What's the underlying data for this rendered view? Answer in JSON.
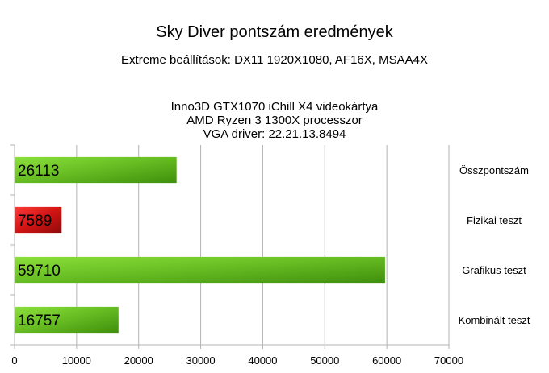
{
  "chart_data": {
    "type": "bar",
    "orientation": "horizontal",
    "title": "Sky Diver pontszám eredmények",
    "subtitle_lines": [
      "Extreme beállítások: DX11 1920X1080, AF16X, MSAA4X",
      "",
      "Inno3D GTX1070 iChill X4 videokártya",
      "AMD Ryzen 3 1300X processzor",
      "VGA driver: 22.21.13.8494"
    ],
    "categories": [
      "Összpontszám",
      "Fizikai teszt",
      "Grafikus teszt",
      "Kombinált teszt"
    ],
    "values": [
      26113,
      7589,
      59710,
      16757
    ],
    "bar_colors": [
      "#66bb22",
      "#cc1111",
      "#66bb22",
      "#66bb22"
    ],
    "xlim": [
      0,
      70000
    ],
    "xticks": [
      0,
      10000,
      20000,
      30000,
      40000,
      50000,
      60000,
      70000
    ],
    "xlabel": "",
    "ylabel": "",
    "grid": true,
    "data_labels": true,
    "legend": "none"
  }
}
